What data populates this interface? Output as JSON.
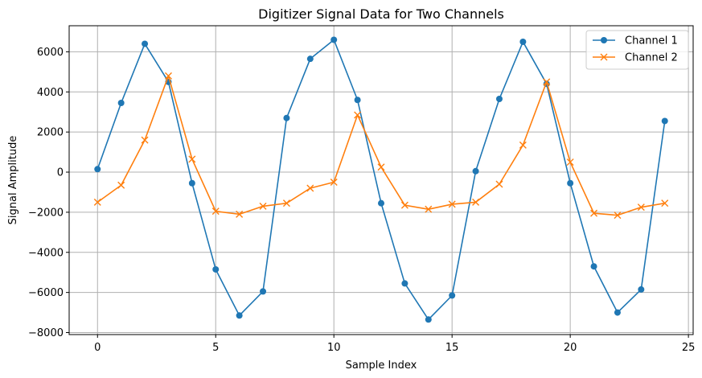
{
  "chart_data": {
    "type": "line",
    "title": "Digitizer Signal Data for Two Channels",
    "xlabel": "Sample Index",
    "ylabel": "Signal Amplitude",
    "xlim": [
      -1.2,
      25.2
    ],
    "ylim": [
      -8100,
      7300
    ],
    "xticks": [
      0,
      5,
      10,
      15,
      20,
      25
    ],
    "yticks": [
      -8000,
      -6000,
      -4000,
      -2000,
      0,
      2000,
      4000,
      6000
    ],
    "ytick_labels": [
      "−8000",
      "−6000",
      "−4000",
      "−2000",
      "0",
      "2000",
      "4000",
      "6000"
    ],
    "grid": true,
    "legend_position": "top-right",
    "x": [
      0,
      1,
      2,
      3,
      4,
      5,
      6,
      7,
      8,
      9,
      10,
      11,
      12,
      13,
      14,
      15,
      16,
      17,
      18,
      19,
      20,
      21,
      22,
      23,
      24
    ],
    "series": [
      {
        "name": "Channel 1",
        "color": "#1f77b4",
        "marker": "circle",
        "values": [
          150,
          3450,
          6400,
          4500,
          -550,
          -4850,
          -7150,
          -5950,
          2700,
          5650,
          6600,
          3600,
          -1550,
          -5550,
          -7350,
          -6150,
          50,
          3650,
          6500,
          4400,
          -550,
          -4700,
          -7000,
          -5850,
          2550
        ]
      },
      {
        "name": "Channel 2",
        "color": "#ff7f0e",
        "marker": "x",
        "values": [
          -1500,
          -650,
          1600,
          4800,
          650,
          -1950,
          -2100,
          -1700,
          -1550,
          -800,
          -500,
          2850,
          250,
          -1650,
          -1850,
          -1600,
          -1500,
          -600,
          1350,
          4500,
          500,
          -2050,
          -2150,
          -1750,
          -1550
        ]
      }
    ]
  }
}
